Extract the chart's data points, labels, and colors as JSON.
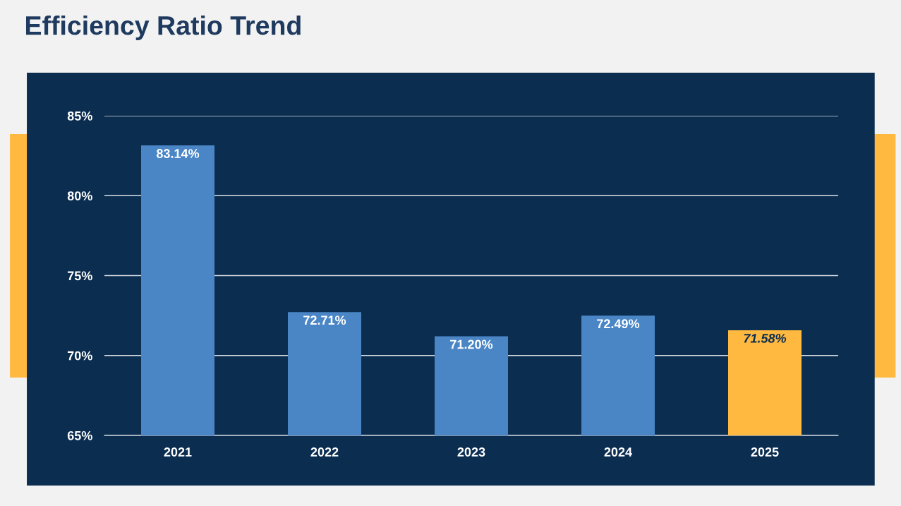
{
  "chart_data": {
    "type": "bar",
    "title": "Efficiency Ratio Trend",
    "categories": [
      "2021",
      "2022",
      "2023",
      "2024",
      "2025"
    ],
    "values": [
      83.14,
      72.71,
      71.2,
      72.49,
      71.58
    ],
    "colors": [
      "#4a86c6",
      "#4a86c6",
      "#4a86c6",
      "#4a86c6",
      "#ffb940"
    ],
    "value_labels": [
      "83.14%",
      "72.71%",
      "71.20%",
      "72.49%",
      "71.58%"
    ],
    "ylim": [
      65,
      85
    ],
    "yticks": [
      {
        "value": 65,
        "label": "65%"
      },
      {
        "value": 70,
        "label": "70%"
      },
      {
        "value": 75,
        "label": "75%"
      },
      {
        "value": 80,
        "label": "80%"
      },
      {
        "value": 85,
        "label": "85%"
      }
    ],
    "grid": "y",
    "legend": false
  }
}
